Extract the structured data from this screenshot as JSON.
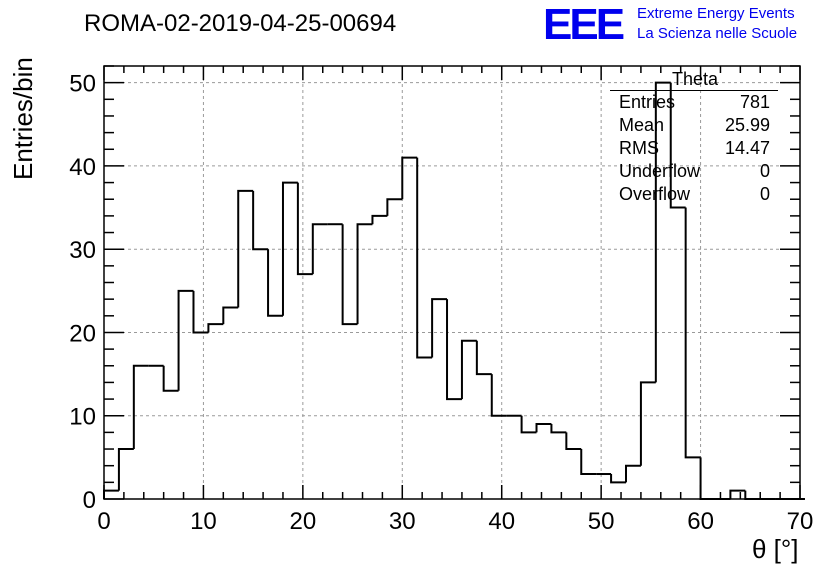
{
  "chart_data": {
    "type": "histogram",
    "title": "ROMA-02-2019-04-25-00694",
    "xlabel": "θ [°]",
    "ylabel": "Entries/bin",
    "xlim": [
      0,
      70
    ],
    "ylim": [
      0,
      52
    ],
    "bin_width": 1.5,
    "bin_start": 0,
    "values": [
      1,
      6,
      16,
      16,
      13,
      25,
      20,
      21,
      23,
      37,
      30,
      22,
      38,
      27,
      33,
      33,
      21,
      33,
      34,
      36,
      41,
      17,
      24,
      12,
      19,
      15,
      10,
      10,
      8,
      9,
      8,
      6,
      3,
      3,
      2,
      4,
      14,
      50,
      35,
      5,
      0,
      0,
      1,
      0,
      0,
      0,
      0
    ],
    "xticks": [
      0,
      10,
      20,
      30,
      40,
      50,
      60,
      70
    ],
    "yticks": [
      0,
      10,
      20,
      30,
      40,
      50
    ],
    "grid": true,
    "line_color": "#000000"
  },
  "stats_box": {
    "name": "Theta",
    "rows": [
      {
        "label": "Entries",
        "value": "781"
      },
      {
        "label": "Mean",
        "value": "25.99"
      },
      {
        "label": "RMS",
        "value": "14.47"
      },
      {
        "label": "Underflow",
        "value": "0"
      },
      {
        "label": "Overflow",
        "value": "0"
      }
    ]
  },
  "logo": {
    "mark": "EEE",
    "line1": "Extreme Energy Events",
    "line2": "La Scienza nelle Scuole",
    "color": "#0000ee"
  }
}
